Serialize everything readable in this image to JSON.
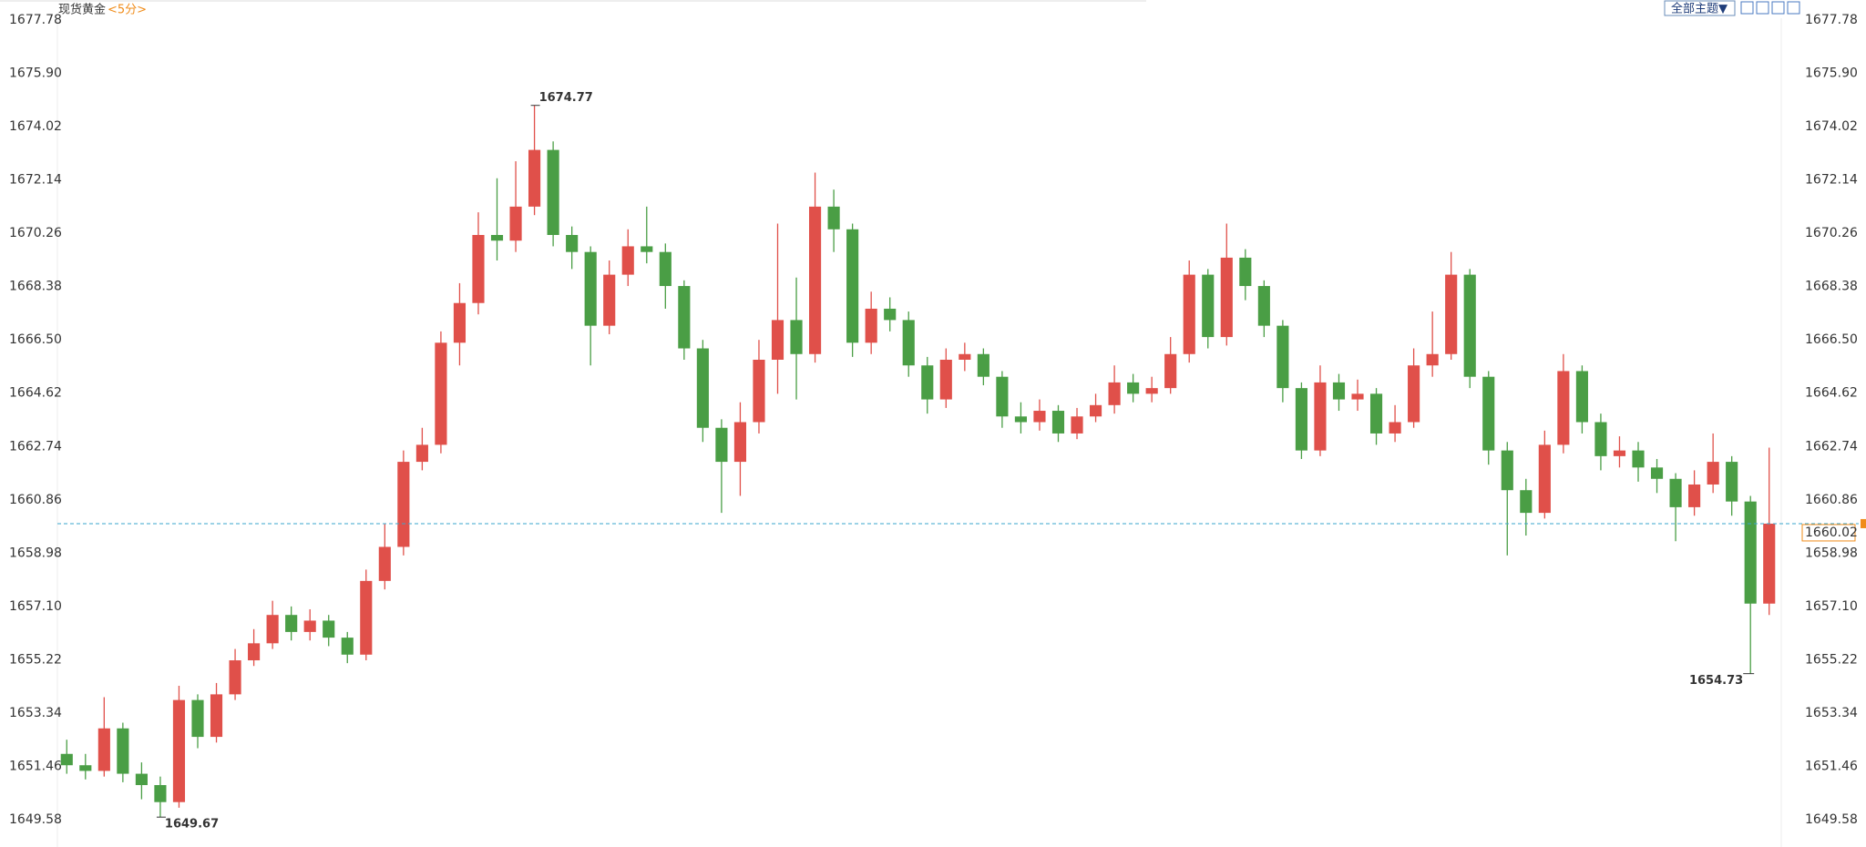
{
  "toolbar": {
    "theme": "全部主题▼"
  },
  "chart_data": {
    "type": "candlestick",
    "title": "现货黄金",
    "subtitle": "<5分>",
    "up_color": "#e0504a",
    "down_color": "#4a9e45",
    "last_color": "#f08c1a",
    "last_line_color": "#3aa6cc",
    "ylim": [
      1649.58,
      1677.78
    ],
    "yticks": [
      1649.58,
      1651.46,
      1653.34,
      1655.22,
      {
        "value": 1657.1,
        "label": "1657.10"
      },
      1658.98,
      1660.86,
      1662.74,
      1664.62,
      {
        "value": 1666.5,
        "label": "1666.50"
      },
      1668.38,
      1670.26,
      1672.14,
      1674.02,
      {
        "value": 1675.9,
        "label": "1675.90"
      },
      1677.78
    ],
    "grid": false,
    "open": [
      1651.9,
      1651.5,
      1651.3,
      1652.8,
      1651.2,
      1650.8,
      1650.2,
      1653.8,
      1652.5,
      1654.0,
      1655.2,
      1655.8,
      1656.8,
      1656.2,
      1656.6,
      1656.0,
      1655.4,
      1658.0,
      1659.2,
      1662.2,
      1662.8,
      1666.4,
      1667.8,
      1670.2,
      1670.0,
      1671.2,
      1673.2,
      1670.2,
      1669.6,
      1667.0,
      1668.8,
      1669.8,
      1669.6,
      1668.4,
      1666.2,
      1663.4,
      1662.2,
      1663.6,
      1665.8,
      1667.2,
      1666.0,
      1671.2,
      1670.4,
      1666.4,
      1667.6,
      1667.2,
      1665.6,
      1664.4,
      1665.8,
      1666.0,
      1665.2,
      1663.8,
      1663.6,
      1664.0,
      1663.2,
      1663.8,
      1664.2,
      1665.0,
      1664.6,
      1664.8,
      1666.0,
      1668.8,
      1666.6,
      1669.4,
      1668.4,
      1667.0,
      1664.8,
      1662.6,
      1665.0,
      1664.4,
      1664.6,
      1663.2,
      1663.6,
      1665.6,
      1666.0,
      1668.8,
      1665.2,
      1662.6,
      1661.2,
      1660.4,
      1662.8,
      1665.4,
      1663.6,
      1662.4,
      1662.6,
      1662.0,
      1661.6,
      1660.6,
      1661.4,
      1662.2,
      1660.8,
      1657.2
    ],
    "high": [
      1652.4,
      1651.9,
      1653.9,
      1653.0,
      1651.6,
      1651.1,
      1654.3,
      1654.0,
      1654.4,
      1655.6,
      1656.3,
      1657.3,
      1657.1,
      1657.0,
      1656.8,
      1656.2,
      1658.4,
      1660.0,
      1662.6,
      1663.4,
      1666.8,
      1668.5,
      1671.0,
      1672.2,
      1672.8,
      1674.77,
      1673.5,
      1670.5,
      1669.8,
      1669.3,
      1670.4,
      1671.2,
      1669.9,
      1668.6,
      1666.5,
      1663.7,
      1664.3,
      1666.5,
      1670.6,
      1668.7,
      1672.4,
      1671.8,
      1670.6,
      1668.2,
      1668.0,
      1667.5,
      1665.9,
      1666.2,
      1666.4,
      1666.2,
      1665.4,
      1664.3,
      1664.4,
      1664.2,
      1664.1,
      1664.6,
      1665.6,
      1665.3,
      1665.2,
      1666.6,
      1669.3,
      1669.0,
      1670.6,
      1669.7,
      1668.6,
      1667.2,
      1665.0,
      1665.6,
      1665.3,
      1665.1,
      1664.8,
      1664.2,
      1666.2,
      1667.5,
      1669.6,
      1669.0,
      1665.4,
      1662.9,
      1661.6,
      1663.3,
      1666.0,
      1665.6,
      1663.9,
      1663.1,
      1662.9,
      1662.3,
      1661.8,
      1661.9,
      1663.2,
      1662.4,
      1661.0,
      1662.7
    ],
    "low": [
      1651.2,
      1651.0,
      1651.1,
      1650.9,
      1650.3,
      1649.67,
      1650.0,
      1652.1,
      1652.3,
      1653.8,
      1655.0,
      1655.6,
      1655.9,
      1655.9,
      1655.7,
      1655.1,
      1655.2,
      1657.7,
      1658.9,
      1661.9,
      1662.5,
      1665.6,
      1667.4,
      1669.3,
      1669.6,
      1670.9,
      1669.8,
      1669.0,
      1665.6,
      1666.7,
      1668.4,
      1669.2,
      1667.6,
      1665.8,
      1662.9,
      1660.4,
      1661.0,
      1663.2,
      1664.6,
      1664.4,
      1665.7,
      1669.6,
      1665.9,
      1666.0,
      1666.8,
      1665.2,
      1663.9,
      1664.1,
      1665.4,
      1664.9,
      1663.4,
      1663.2,
      1663.3,
      1662.9,
      1663.0,
      1663.6,
      1663.9,
      1664.3,
      1664.3,
      1664.6,
      1665.7,
      1666.2,
      1666.3,
      1667.9,
      1666.6,
      1664.3,
      1662.3,
      1662.4,
      1664.0,
      1664.0,
      1662.8,
      1662.9,
      1663.4,
      1665.2,
      1665.8,
      1664.8,
      1662.1,
      1658.9,
      1659.6,
      1660.2,
      1662.5,
      1663.2,
      1661.9,
      1662.0,
      1661.5,
      1661.1,
      1659.4,
      1660.3,
      1661.1,
      1660.3,
      1654.73,
      1656.8
    ],
    "close": [
      1651.5,
      1651.3,
      1652.8,
      1651.2,
      1650.8,
      1650.2,
      1653.8,
      1652.5,
      1654.0,
      1655.2,
      1655.8,
      1656.8,
      1656.2,
      1656.6,
      1656.0,
      1655.4,
      1658.0,
      1659.2,
      1662.2,
      1662.8,
      1666.4,
      1667.8,
      1670.2,
      1670.0,
      1671.2,
      1673.2,
      1670.2,
      1669.6,
      1667.0,
      1668.8,
      1669.8,
      1669.6,
      1668.4,
      1666.2,
      1663.4,
      1662.2,
      1663.6,
      1665.8,
      1667.2,
      1666.0,
      1671.2,
      1670.4,
      1666.4,
      1667.6,
      1667.2,
      1665.6,
      1664.4,
      1665.8,
      1666.0,
      1665.2,
      1663.8,
      1663.6,
      1664.0,
      1663.2,
      1663.8,
      1664.2,
      1665.0,
      1664.6,
      1664.8,
      1666.0,
      1668.8,
      1666.6,
      1669.4,
      1668.4,
      1667.0,
      1664.8,
      1662.6,
      1665.0,
      1664.4,
      1664.6,
      1663.2,
      1663.6,
      1665.6,
      1666.0,
      1668.8,
      1665.2,
      1662.6,
      1661.2,
      1660.4,
      1662.8,
      1665.4,
      1663.6,
      1662.4,
      1662.6,
      1662.0,
      1661.6,
      1660.6,
      1661.4,
      1662.2,
      1660.8,
      1657.2,
      1660.02
    ]
  }
}
